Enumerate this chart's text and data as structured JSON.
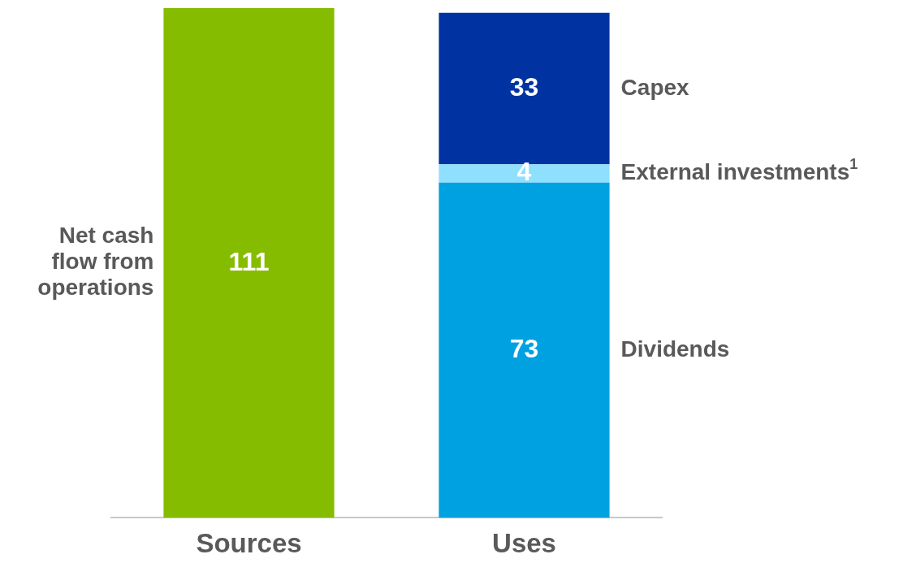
{
  "chart_data": {
    "type": "bar",
    "stacked": true,
    "categories": [
      "Sources",
      "Uses"
    ],
    "series": [
      {
        "name": "Net cash flow from operations",
        "color": "#86bc00",
        "values": [
          111,
          null
        ]
      },
      {
        "name": "Dividends",
        "color": "#00a1e1",
        "values": [
          null,
          73
        ]
      },
      {
        "name": "External investments$^{1}$",
        "color": "#8fdfff",
        "values": [
          null,
          4
        ]
      },
      {
        "name": "Capex",
        "color": "#0033a1",
        "values": [
          null,
          33
        ]
      }
    ],
    "data_labels": true,
    "legend": false,
    "grid": false,
    "tick_labels": "x"
  }
}
